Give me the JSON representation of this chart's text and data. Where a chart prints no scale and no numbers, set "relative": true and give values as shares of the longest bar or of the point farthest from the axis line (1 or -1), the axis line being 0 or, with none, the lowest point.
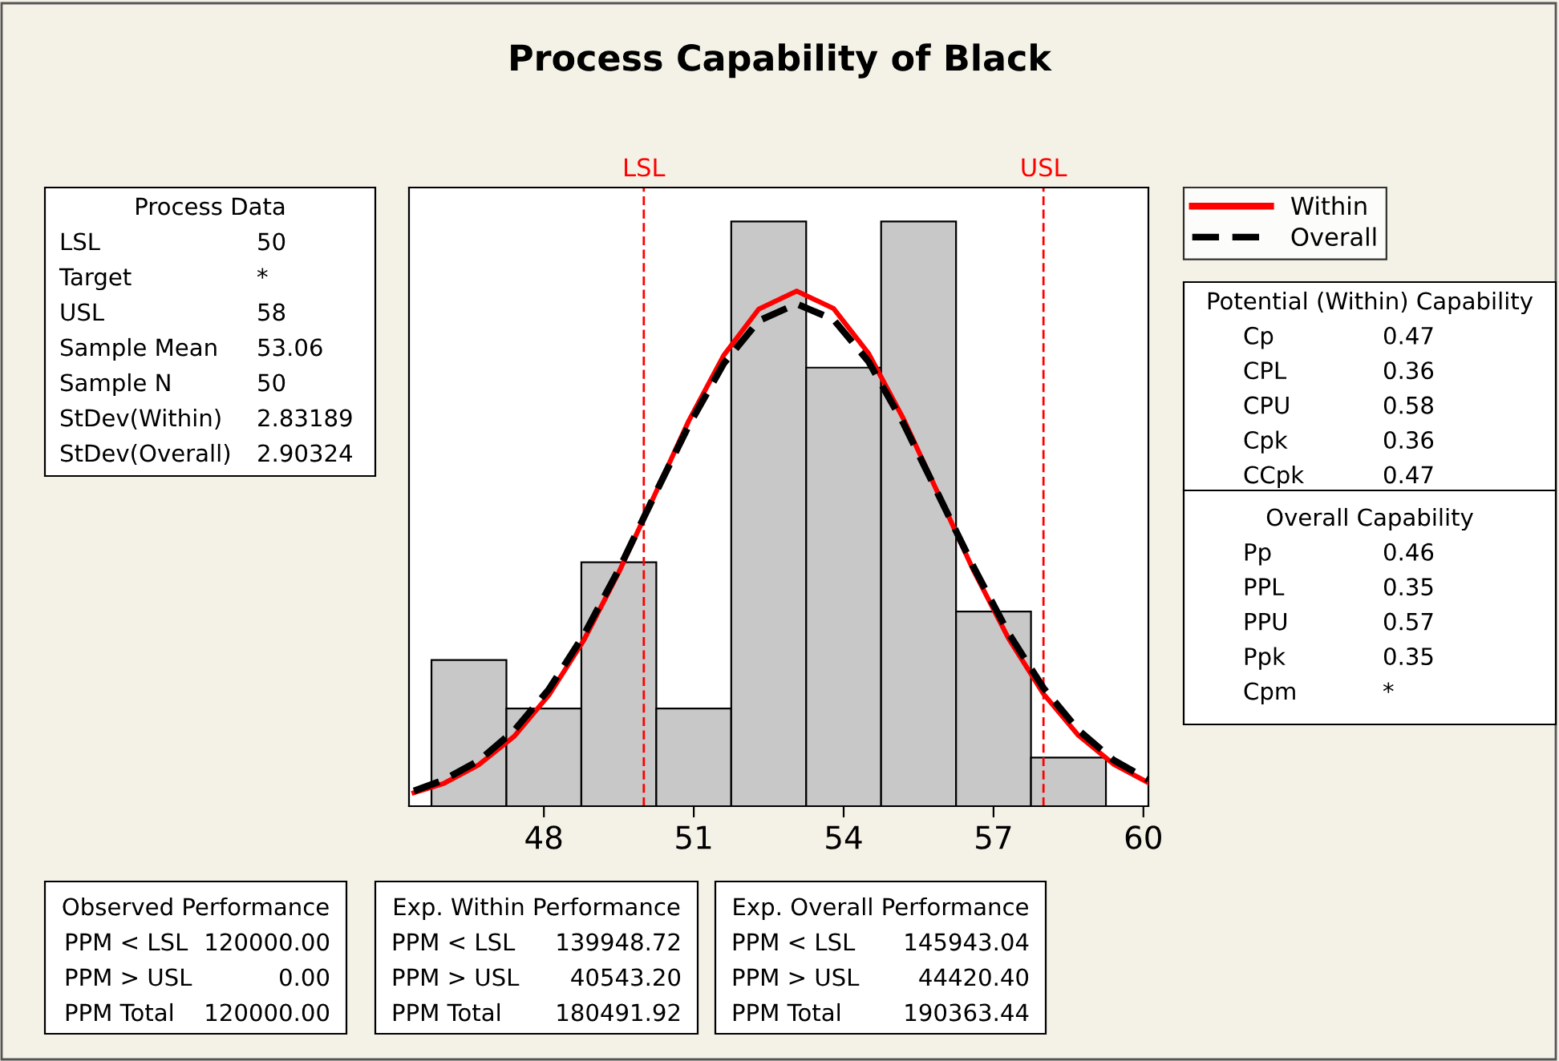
{
  "chart_data": {
    "type": "histogram",
    "title": "Process Capability of Black",
    "relative": true,
    "bins": [
      45.75,
      47.25,
      48.75,
      50.25,
      51.75,
      53.25,
      54.75,
      56.25,
      57.75,
      59.25
    ],
    "values": [
      0.25,
      0.167,
      0.417,
      0.167,
      1,
      0.75,
      1,
      0.333,
      0.083
    ],
    "color": "#c8c8c8",
    "xlim": [
      45.3,
      60.1
    ],
    "xticks": [
      48,
      51,
      54,
      57,
      60
    ],
    "grid": false,
    "legend": "right",
    "series": [
      {
        "name": "Within",
        "type": "line",
        "color": "#ff0000",
        "line_style": "solid",
        "x": [
          45.4,
          46.0,
          46.7,
          47.4,
          48.1,
          48.8,
          49.5,
          50.2,
          50.9,
          51.6,
          52.3,
          53.06,
          53.8,
          54.5,
          55.2,
          55.9,
          56.6,
          57.3,
          58.0,
          58.7,
          59.4,
          60.1
        ],
        "values": [
          0.023,
          0.039,
          0.071,
          0.119,
          0.19,
          0.284,
          0.4,
          0.529,
          0.659,
          0.771,
          0.85,
          0.881,
          0.851,
          0.774,
          0.662,
          0.533,
          0.403,
          0.287,
          0.192,
          0.121,
          0.072,
          0.04
        ]
      },
      {
        "name": "Overall",
        "type": "line",
        "color": "#000000",
        "line_style": "dashed",
        "x": [
          45.4,
          46.0,
          46.7,
          47.4,
          48.1,
          48.8,
          49.5,
          50.2,
          50.9,
          51.6,
          52.3,
          53.06,
          53.8,
          54.5,
          55.2,
          55.9,
          56.6,
          57.3,
          58.0,
          58.7,
          59.4,
          60.1
        ],
        "values": [
          0.026,
          0.045,
          0.078,
          0.129,
          0.2,
          0.293,
          0.405,
          0.529,
          0.651,
          0.757,
          0.83,
          0.859,
          0.832,
          0.76,
          0.654,
          0.532,
          0.409,
          0.296,
          0.202,
          0.13,
          0.079,
          0.045
        ]
      }
    ],
    "ref_lines": [
      {
        "axis": "x",
        "value": 50,
        "label": "LSL",
        "color": "#ff0000",
        "line_style": "dashed"
      },
      {
        "axis": "x",
        "value": 58,
        "label": "USL",
        "color": "#ff0000",
        "line_style": "dashed"
      }
    ],
    "annotations": [
      "Process Data",
      "LSL\t50",
      "Target\t*",
      "USL\t58",
      "Sample Mean\t53.06",
      "Sample N\t50",
      "StDev(Within)\t2.83189",
      "StDev(Overall)\t2.90324",
      "Potential (Within) Capability",
      "Cp\t0.47",
      "CPL\t0.36",
      "CPU\t0.58",
      "Cpk\t0.36",
      "CCpk\t0.47",
      "Overall Capability",
      "Pp\t0.46",
      "PPL\t0.35",
      "PPU\t0.57",
      "Ppk\t0.35",
      "Cpm\t*",
      "Observed Performance",
      "PPM < LSL\t120000.00",
      "PPM > USL\t0.00",
      "PPM Total\t120000.00",
      "Exp. Within Performance",
      "PPM < LSL\t139948.72",
      "PPM > USL\t40543.20",
      "PPM Total\t180491.92",
      "Exp. Overall Performance",
      "PPM < LSL\t145943.04",
      "PPM > USL\t44420.40",
      "PPM Total\t190363.44"
    ]
  }
}
